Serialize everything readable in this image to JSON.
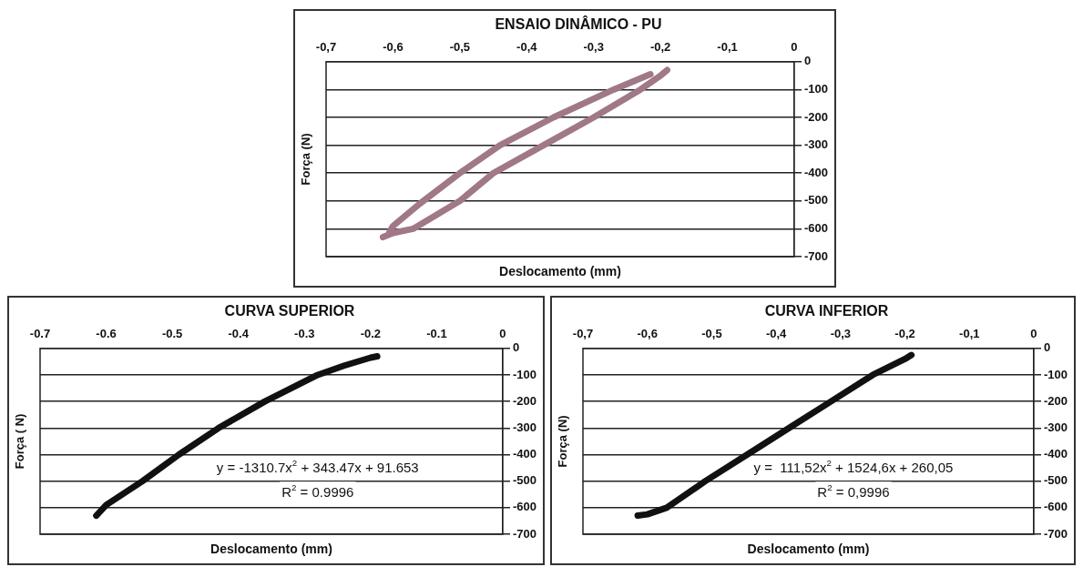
{
  "chart_data": [
    {
      "type": "line",
      "title": "ENSAIO DINÂMICO - PU",
      "xlabel": "Deslocamento (mm)",
      "ylabel": "Força (N)",
      "xlim": [
        -0.7,
        0
      ],
      "ylim": [
        -700,
        0
      ],
      "xticks": [
        {
          "value": -0.7,
          "label": "-0,7"
        },
        {
          "value": -0.6,
          "label": "-0,6"
        },
        {
          "value": -0.5,
          "label": "-0,5"
        },
        {
          "value": -0.4,
          "label": "-0,4"
        },
        {
          "value": -0.3,
          "label": "-0,3"
        },
        {
          "value": -0.2,
          "label": "-0,2"
        },
        {
          "value": -0.1,
          "label": "-0,1"
        },
        0
      ],
      "yticks": [
        -700,
        -600,
        -500,
        -400,
        -300,
        -200,
        -100,
        0
      ],
      "grid": "y",
      "marker": "none",
      "line_style": "solid",
      "series": [
        {
          "color": "#a07888",
          "x": [
            -0.615,
            -0.6,
            -0.57,
            -0.5,
            -0.45,
            -0.375,
            -0.3,
            -0.23,
            -0.2,
            -0.19
          ],
          "values": [
            -630,
            -615,
            -600,
            -500,
            -400,
            -300,
            -200,
            -100,
            -50,
            -30
          ]
        },
        {
          "color": "#a07888",
          "x": [
            -0.605,
            -0.6,
            -0.56,
            -0.5,
            -0.44,
            -0.36,
            -0.27,
            -0.215
          ],
          "values": [
            -610,
            -590,
            -510,
            -400,
            -300,
            -200,
            -100,
            -45
          ]
        }
      ]
    },
    {
      "type": "line",
      "title": "CURVA SUPERIOR",
      "xlabel": "Deslocamento (mm)",
      "ylabel": "Força ( N)",
      "xlim": [
        -0.7,
        0
      ],
      "ylim": [
        -700,
        0
      ],
      "xticks": [
        -0.7,
        -0.6,
        -0.5,
        -0.4,
        -0.3,
        -0.2,
        -0.1,
        0
      ],
      "yticks": [
        -700,
        -600,
        -500,
        -400,
        -300,
        -200,
        -100,
        0
      ],
      "grid": "y",
      "marker": "none",
      "line_style": "solid",
      "annotations": [
        "y = -1310.7x$^{2}$ + 343.47x + 91.653",
        "R$^{2}$ = 0.9996"
      ],
      "series": [
        {
          "color": "#111111",
          "x": [
            -0.615,
            -0.6,
            -0.545,
            -0.49,
            -0.43,
            -0.36,
            -0.28,
            -0.24,
            -0.2,
            -0.19
          ],
          "values": [
            -630,
            -590,
            -500,
            -400,
            -300,
            -200,
            -100,
            -65,
            -35,
            -30
          ]
        }
      ]
    },
    {
      "type": "line",
      "title": "CURVA INFERIOR",
      "xlabel": "Deslocamento (mm)",
      "ylabel": "Força (N)",
      "xlim": [
        -0.7,
        0
      ],
      "ylim": [
        -700,
        0
      ],
      "xticks": [
        {
          "value": -0.7,
          "label": "-0,7"
        },
        {
          "value": -0.6,
          "label": "-0,6"
        },
        {
          "value": -0.5,
          "label": "-0,5"
        },
        {
          "value": -0.4,
          "label": "-0,4"
        },
        {
          "value": -0.3,
          "label": "-0,3"
        },
        {
          "value": -0.2,
          "label": "-0,2"
        },
        {
          "value": -0.1,
          "label": "-0,1"
        },
        0
      ],
      "yticks": [
        -700,
        -600,
        -500,
        -400,
        -300,
        -200,
        -100,
        0
      ],
      "grid": "y",
      "marker": "none",
      "line_style": "solid",
      "annotations": [
        "y =  111,52x$^{2}$ + 1524,6x + 260,05",
        "R$^{2}$ = 0,9996"
      ],
      "series": [
        {
          "color": "#111111",
          "x": [
            -0.615,
            -0.6,
            -0.57,
            -0.51,
            -0.445,
            -0.38,
            -0.315,
            -0.25,
            -0.2,
            -0.19
          ],
          "values": [
            -630,
            -625,
            -600,
            -500,
            -400,
            -300,
            -200,
            -100,
            -40,
            -25
          ]
        }
      ]
    }
  ]
}
